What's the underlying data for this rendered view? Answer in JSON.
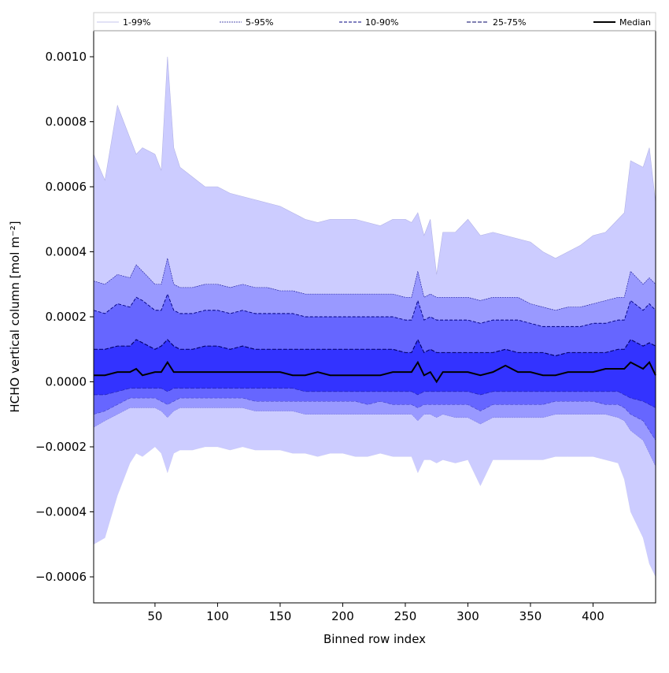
{
  "chart_data": {
    "type": "area",
    "xlabel": "Binned row index",
    "ylabel": "HCHO vertical column [mol m⁻²]",
    "xlim": [
      1,
      450
    ],
    "ylim": [
      -0.00068,
      0.00108
    ],
    "xticks": [
      50,
      100,
      150,
      200,
      250,
      300,
      350,
      400
    ],
    "xtick_labels": [
      "50",
      "100",
      "150",
      "200",
      "250",
      "300",
      "350",
      "400"
    ],
    "yticks": [
      -0.0006,
      -0.0004,
      -0.0002,
      0.0,
      0.0002,
      0.0004,
      0.0006,
      0.0008,
      0.001
    ],
    "ytick_labels": [
      "−0.0006",
      "−0.0004",
      "−0.0002",
      "0.0000",
      "0.0002",
      "0.0004",
      "0.0006",
      "0.0008",
      "0.0010"
    ],
    "grid": false,
    "legend_position": "top",
    "x": [
      1,
      10,
      20,
      30,
      35,
      40,
      50,
      55,
      60,
      65,
      70,
      80,
      90,
      100,
      110,
      120,
      130,
      140,
      150,
      160,
      170,
      180,
      190,
      200,
      210,
      220,
      230,
      240,
      250,
      255,
      260,
      265,
      270,
      275,
      280,
      290,
      300,
      310,
      320,
      330,
      340,
      350,
      360,
      370,
      380,
      390,
      400,
      410,
      420,
      425,
      430,
      440,
      445,
      450
    ],
    "series": [
      {
        "name": "1-99%",
        "color": "#ccccff",
        "upper": [
          0.0007,
          0.00062,
          0.00085,
          0.00075,
          0.0007,
          0.00072,
          0.0007,
          0.00065,
          0.001,
          0.00072,
          0.00066,
          0.00063,
          0.0006,
          0.0006,
          0.00058,
          0.00057,
          0.00056,
          0.00055,
          0.00054,
          0.00052,
          0.0005,
          0.00049,
          0.0005,
          0.0005,
          0.0005,
          0.00049,
          0.00048,
          0.0005,
          0.0005,
          0.00049,
          0.00052,
          0.00045,
          0.0005,
          0.00033,
          0.00046,
          0.00046,
          0.0005,
          0.00045,
          0.00046,
          0.00045,
          0.00044,
          0.00043,
          0.0004,
          0.00038,
          0.0004,
          0.00042,
          0.00045,
          0.00046,
          0.0005,
          0.00052,
          0.00068,
          0.00066,
          0.00072,
          0.00055
        ],
        "lower": [
          -0.0005,
          -0.00048,
          -0.00035,
          -0.00025,
          -0.00022,
          -0.00023,
          -0.0002,
          -0.00022,
          -0.00028,
          -0.00022,
          -0.00021,
          -0.00021,
          -0.0002,
          -0.0002,
          -0.00021,
          -0.0002,
          -0.00021,
          -0.00021,
          -0.00021,
          -0.00022,
          -0.00022,
          -0.00023,
          -0.00022,
          -0.00022,
          -0.00023,
          -0.00023,
          -0.00022,
          -0.00023,
          -0.00023,
          -0.00023,
          -0.00028,
          -0.00024,
          -0.00024,
          -0.00025,
          -0.00024,
          -0.00025,
          -0.00024,
          -0.00032,
          -0.00024,
          -0.00024,
          -0.00024,
          -0.00024,
          -0.00024,
          -0.00023,
          -0.00023,
          -0.00023,
          -0.00023,
          -0.00024,
          -0.00025,
          -0.0003,
          -0.0004,
          -0.00048,
          -0.00056,
          -0.0006
        ]
      },
      {
        "name": "5-95%",
        "color": "#9999ff",
        "upper": [
          0.00031,
          0.0003,
          0.00033,
          0.00032,
          0.00036,
          0.00034,
          0.0003,
          0.0003,
          0.00038,
          0.0003,
          0.00029,
          0.00029,
          0.0003,
          0.0003,
          0.00029,
          0.0003,
          0.00029,
          0.00029,
          0.00028,
          0.00028,
          0.00027,
          0.00027,
          0.00027,
          0.00027,
          0.00027,
          0.00027,
          0.00027,
          0.00027,
          0.00026,
          0.00026,
          0.00034,
          0.00026,
          0.00027,
          0.00026,
          0.00026,
          0.00026,
          0.00026,
          0.00025,
          0.00026,
          0.00026,
          0.00026,
          0.00024,
          0.00023,
          0.00022,
          0.00023,
          0.00023,
          0.00024,
          0.00025,
          0.00026,
          0.00026,
          0.00034,
          0.0003,
          0.00032,
          0.0003
        ],
        "lower": [
          -0.00014,
          -0.00012,
          -0.0001,
          -8e-05,
          -8e-05,
          -8e-05,
          -8e-05,
          -9e-05,
          -0.00011,
          -9e-05,
          -8e-05,
          -8e-05,
          -8e-05,
          -8e-05,
          -8e-05,
          -8e-05,
          -9e-05,
          -9e-05,
          -9e-05,
          -9e-05,
          -0.0001,
          -0.0001,
          -0.0001,
          -0.0001,
          -0.0001,
          -0.0001,
          -0.0001,
          -0.0001,
          -0.0001,
          -0.0001,
          -0.00012,
          -0.0001,
          -0.0001,
          -0.00011,
          -0.0001,
          -0.00011,
          -0.00011,
          -0.00013,
          -0.00011,
          -0.00011,
          -0.00011,
          -0.00011,
          -0.00011,
          -0.0001,
          -0.0001,
          -0.0001,
          -0.0001,
          -0.0001,
          -0.00011,
          -0.00012,
          -0.00015,
          -0.00018,
          -0.00022,
          -0.00026
        ]
      },
      {
        "name": "10-90%",
        "color": "#6666ff",
        "upper": [
          0.00022,
          0.00021,
          0.00024,
          0.00023,
          0.00026,
          0.00025,
          0.00022,
          0.00022,
          0.00027,
          0.00022,
          0.00021,
          0.00021,
          0.00022,
          0.00022,
          0.00021,
          0.00022,
          0.00021,
          0.00021,
          0.00021,
          0.00021,
          0.0002,
          0.0002,
          0.0002,
          0.0002,
          0.0002,
          0.0002,
          0.0002,
          0.0002,
          0.00019,
          0.00019,
          0.00025,
          0.00019,
          0.0002,
          0.00019,
          0.00019,
          0.00019,
          0.00019,
          0.00018,
          0.00019,
          0.00019,
          0.00019,
          0.00018,
          0.00017,
          0.00017,
          0.00017,
          0.00017,
          0.00018,
          0.00018,
          0.00019,
          0.00019,
          0.00025,
          0.00022,
          0.00024,
          0.00022
        ],
        "lower": [
          -0.0001,
          -9e-05,
          -7e-05,
          -5e-05,
          -5e-05,
          -5e-05,
          -5e-05,
          -6e-05,
          -7e-05,
          -6e-05,
          -5e-05,
          -5e-05,
          -5e-05,
          -5e-05,
          -5e-05,
          -5e-05,
          -6e-05,
          -6e-05,
          -6e-05,
          -6e-05,
          -6e-05,
          -6e-05,
          -6e-05,
          -6e-05,
          -6e-05,
          -7e-05,
          -6e-05,
          -7e-05,
          -7e-05,
          -7e-05,
          -8e-05,
          -7e-05,
          -7e-05,
          -7e-05,
          -7e-05,
          -7e-05,
          -7e-05,
          -9e-05,
          -7e-05,
          -7e-05,
          -7e-05,
          -7e-05,
          -7e-05,
          -6e-05,
          -6e-05,
          -6e-05,
          -6e-05,
          -7e-05,
          -7e-05,
          -8e-05,
          -0.0001,
          -0.00012,
          -0.00015,
          -0.00018
        ]
      },
      {
        "name": "25-75%",
        "color": "#3333ff",
        "upper": [
          0.0001,
          0.0001,
          0.00011,
          0.00011,
          0.00013,
          0.00012,
          0.0001,
          0.00011,
          0.00013,
          0.00011,
          0.0001,
          0.0001,
          0.00011,
          0.00011,
          0.0001,
          0.00011,
          0.0001,
          0.0001,
          0.0001,
          0.0001,
          0.0001,
          0.0001,
          0.0001,
          0.0001,
          0.0001,
          0.0001,
          0.0001,
          0.0001,
          9e-05,
          9e-05,
          0.00013,
          9e-05,
          0.0001,
          9e-05,
          9e-05,
          9e-05,
          9e-05,
          9e-05,
          9e-05,
          0.0001,
          9e-05,
          9e-05,
          9e-05,
          8e-05,
          9e-05,
          9e-05,
          9e-05,
          9e-05,
          0.0001,
          0.0001,
          0.00013,
          0.00011,
          0.00012,
          0.00011
        ],
        "lower": [
          -4e-05,
          -4e-05,
          -3e-05,
          -2e-05,
          -2e-05,
          -2e-05,
          -2e-05,
          -2e-05,
          -3e-05,
          -2e-05,
          -2e-05,
          -2e-05,
          -2e-05,
          -2e-05,
          -2e-05,
          -2e-05,
          -2e-05,
          -2e-05,
          -2e-05,
          -2e-05,
          -3e-05,
          -3e-05,
          -3e-05,
          -3e-05,
          -3e-05,
          -3e-05,
          -3e-05,
          -3e-05,
          -3e-05,
          -3e-05,
          -4e-05,
          -3e-05,
          -3e-05,
          -3e-05,
          -3e-05,
          -3e-05,
          -3e-05,
          -4e-05,
          -3e-05,
          -3e-05,
          -3e-05,
          -3e-05,
          -3e-05,
          -3e-05,
          -3e-05,
          -3e-05,
          -3e-05,
          -3e-05,
          -3e-05,
          -4e-05,
          -5e-05,
          -6e-05,
          -7e-05,
          -8e-05
        ]
      }
    ],
    "median": {
      "name": "Median",
      "color": "#000000",
      "values": [
        2e-05,
        2e-05,
        3e-05,
        3e-05,
        4e-05,
        2e-05,
        3e-05,
        3e-05,
        6e-05,
        3e-05,
        3e-05,
        3e-05,
        3e-05,
        3e-05,
        3e-05,
        3e-05,
        3e-05,
        3e-05,
        3e-05,
        2e-05,
        2e-05,
        3e-05,
        2e-05,
        2e-05,
        2e-05,
        2e-05,
        2e-05,
        3e-05,
        3e-05,
        3e-05,
        6e-05,
        2e-05,
        3e-05,
        0.0,
        3e-05,
        3e-05,
        3e-05,
        2e-05,
        3e-05,
        5e-05,
        3e-05,
        3e-05,
        2e-05,
        2e-05,
        3e-05,
        3e-05,
        3e-05,
        4e-05,
        4e-05,
        4e-05,
        6e-05,
        4e-05,
        6e-05,
        2e-05
      ]
    }
  }
}
